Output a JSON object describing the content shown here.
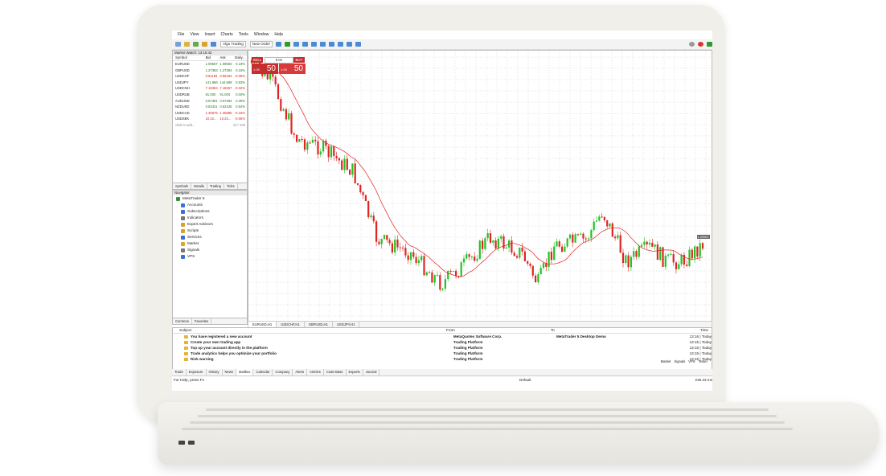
{
  "menu": [
    "File",
    "View",
    "Insert",
    "Charts",
    "Tools",
    "Window",
    "Help"
  ],
  "toolbar": {
    "algo_trading": "Algo Trading",
    "new_order": "New Order"
  },
  "market_watch": {
    "title": "Market Watch: 13:16:42",
    "headers": {
      "symbol": "Symbol",
      "bid": "Bid",
      "ask": "Ask",
      "daily": "Daily..."
    },
    "rows": [
      {
        "symbol": "EURUSD",
        "bid": "1.09507",
        "ask": "1.09603",
        "daily": "0.19%",
        "dir": "pos"
      },
      {
        "symbol": "GBPUSD",
        "bid": "1.27383",
        "ask": "1.27394",
        "daily": "0.15%",
        "dir": "pos"
      },
      {
        "symbol": "USDCHF",
        "bid": "0.91183",
        "ask": "0.85184",
        "daily": "-0.05%",
        "dir": "neg"
      },
      {
        "symbol": "USDJPY",
        "bid": "141.886",
        "ask": "144.869",
        "daily": "0.53%",
        "dir": "pos"
      },
      {
        "symbol": "USDCNH",
        "bid": "7.18364",
        "ask": "7.18257",
        "daily": "-0.02%",
        "dir": "neg"
      },
      {
        "symbol": "USDRUB",
        "bid": "91.000",
        "ask": "91.000",
        "daily": "0.00%",
        "dir": "pos"
      },
      {
        "symbol": "AUDUSD",
        "bid": "0.67361",
        "ask": "0.67364",
        "daily": "0.39%",
        "dir": "pos"
      },
      {
        "symbol": "NZDUSD",
        "bid": "0.62421",
        "ask": "0.62426",
        "daily": "0.54%",
        "dir": "pos"
      },
      {
        "symbol": "USDCAD",
        "bid": "1.35875",
        "ask": "1.35885",
        "daily": "-0.16%",
        "dir": "neg"
      },
      {
        "symbol": "USDSEK",
        "bid": "10.22...",
        "ask": "10.23...",
        "daily": "-0.05%",
        "dir": "neg"
      }
    ],
    "add_row": "click to add...",
    "count": "10 / 100",
    "tabs": [
      "Symbols",
      "Details",
      "Trading",
      "Ticks"
    ]
  },
  "navigator": {
    "title": "Navigator",
    "items": [
      {
        "label": "MetaTrader 5",
        "color": "#3a8f3a"
      },
      {
        "label": "Accounts",
        "color": "#3d6fd6"
      },
      {
        "label": "Subscriptions",
        "color": "#3d6fd6"
      },
      {
        "label": "Indicators",
        "color": "#777"
      },
      {
        "label": "Expert Advisors",
        "color": "#d8a22d"
      },
      {
        "label": "Scripts",
        "color": "#d8a22d"
      },
      {
        "label": "Services",
        "color": "#3d6fd6"
      },
      {
        "label": "Market",
        "color": "#e0a530"
      },
      {
        "label": "Signals",
        "color": "#777"
      },
      {
        "label": "VPS",
        "color": "#3d6fd6"
      }
    ],
    "tabs": [
      "Common",
      "Favorites"
    ]
  },
  "trade_panel": {
    "sell": "SELL",
    "buy": "BUY",
    "volume": "0.01",
    "sell_small": "1.09",
    "sell_big": "50",
    "buy_small": "1.09",
    "buy_big": "50"
  },
  "chart_tabs": [
    "EURUSD,H1",
    "USDCHF,H1",
    "GBPUSD,H1",
    "USDJPY,H1"
  ],
  "price_tag": "1.09507",
  "toolbox": {
    "headers": {
      "subject": "Subject",
      "from": "From",
      "to": "To",
      "time": "Time"
    },
    "rows": [
      {
        "subject": "You have registered a new account",
        "from": "MetaQuotes Software Corp.",
        "to": "MetaTrader 5 Desktop Demo",
        "time": "13:16 | Today"
      },
      {
        "subject": "Create your own trading app",
        "from": "Trading Platform",
        "to": "",
        "time": "13:15 | Today"
      },
      {
        "subject": "Top up your account directly in the platform",
        "from": "Trading Platform",
        "to": "",
        "time": "13:15 | Today"
      },
      {
        "subject": "Trade analytics helps you optimize your portfolio",
        "from": "Trading Platform",
        "to": "",
        "time": "13:15 | Today"
      },
      {
        "subject": "Risk warning",
        "from": "Trading Platform",
        "to": "",
        "time": "13:15 | Today"
      }
    ],
    "tabs": [
      "Trade",
      "Exposure",
      "History",
      "News",
      "Mailbox",
      "Calendar",
      "Company",
      "Alerts",
      "Articles",
      "Code Base",
      "Experts",
      "Journal"
    ],
    "right_tabs": [
      "Market",
      "Signals",
      "VPS",
      "Tester"
    ]
  },
  "status": {
    "help": "For Help, press F1",
    "profile": "Default",
    "ping": "236.23 ms"
  }
}
